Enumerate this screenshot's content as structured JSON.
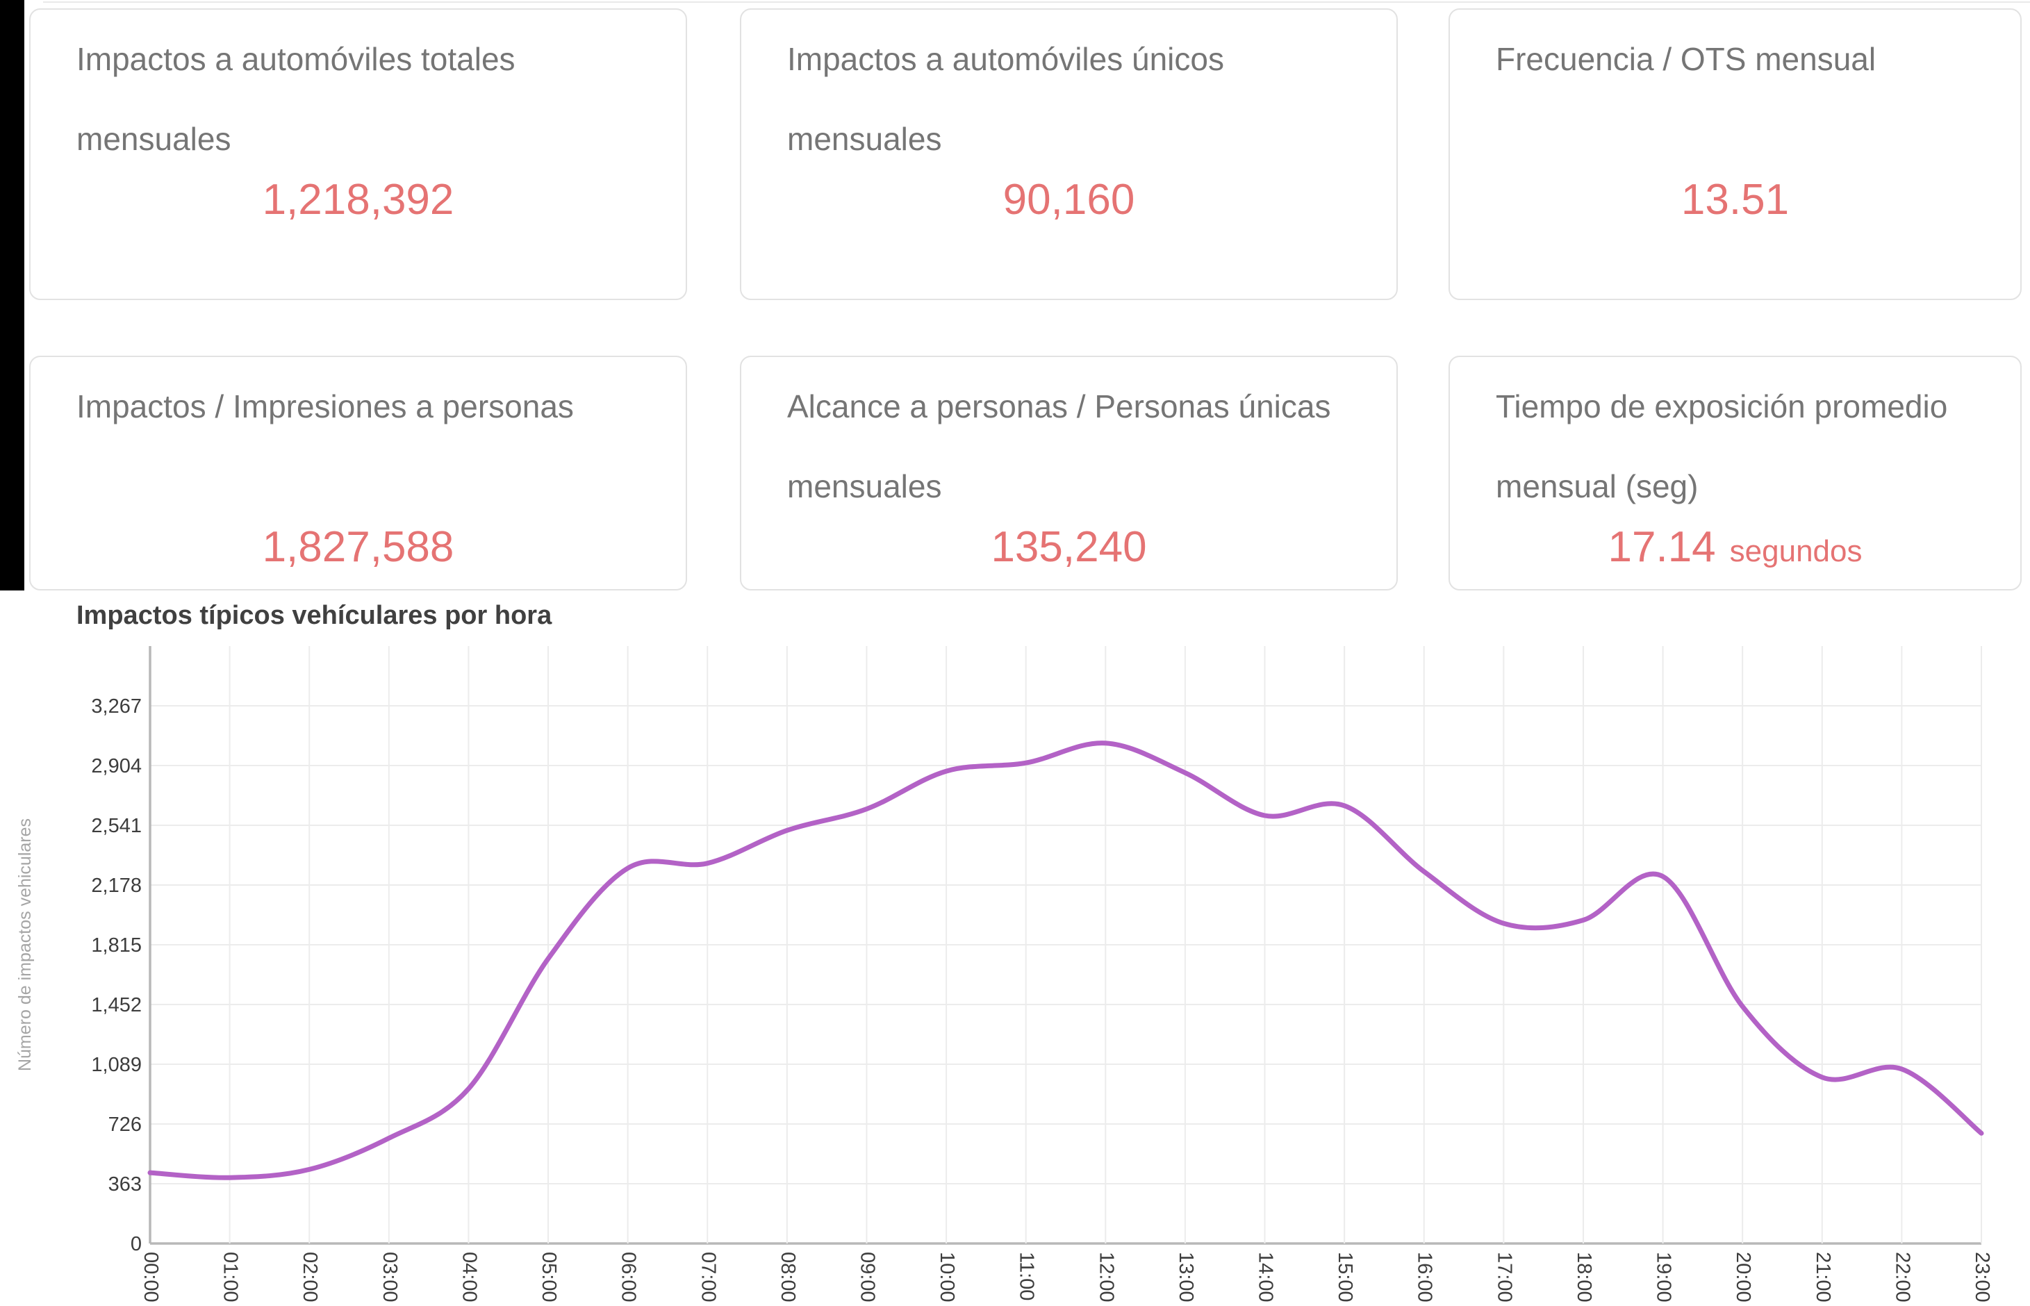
{
  "scorecards": [
    {
      "title": "Impactos a automóviles totales mensuales",
      "value": "1,218,392"
    },
    {
      "title": "Impactos a automóviles únicos mensuales",
      "value": "90,160"
    },
    {
      "title": "Frecuencia / OTS mensual",
      "value": "13.51"
    },
    {
      "title": "Impactos / Impresiones a personas",
      "value": "1,827,588"
    },
    {
      "title": "Alcance a personas / Personas únicas mensuales",
      "value": "135,240"
    },
    {
      "title": "Tiempo de exposición promedio mensual (seg)",
      "value": "17.14",
      "unit": "segundos"
    }
  ],
  "chart_data": {
    "type": "line",
    "title": "Impactos típicos vehículares por hora",
    "xlabel": "",
    "ylabel": "Número de impactos vehiculares",
    "x": [
      "00:00",
      "01:00",
      "02:00",
      "03:00",
      "04:00",
      "05:00",
      "06:00",
      "07:00",
      "08:00",
      "09:00",
      "10:00",
      "11:00",
      "12:00",
      "13:00",
      "14:00",
      "15:00",
      "16:00",
      "17:00",
      "18:00",
      "19:00",
      "20:00",
      "21:00",
      "22:00",
      "23:00"
    ],
    "values": [
      430,
      400,
      450,
      640,
      940,
      1730,
      2280,
      2310,
      2510,
      2640,
      2870,
      2920,
      3040,
      2860,
      2600,
      2660,
      2260,
      1945,
      1965,
      2230,
      1440,
      1010,
      1060,
      670
    ],
    "yticks": [
      0,
      363,
      726,
      1089,
      1452,
      1815,
      2178,
      2541,
      2904,
      3267
    ],
    "ylim": [
      0,
      3630
    ],
    "grid": true,
    "legend": "none",
    "smooth": true,
    "line_color": "#b362c6"
  },
  "colors": {
    "value_accent": "#e57373",
    "card_title": "#757575",
    "card_border": "#e2e2e2",
    "line": "#b362c6",
    "gridline": "#ececec",
    "axis_line": "#b8b8b8",
    "tick_label": "#3d3d3d",
    "axis_title": "#a5a5a5",
    "chart_title": "#404040"
  }
}
